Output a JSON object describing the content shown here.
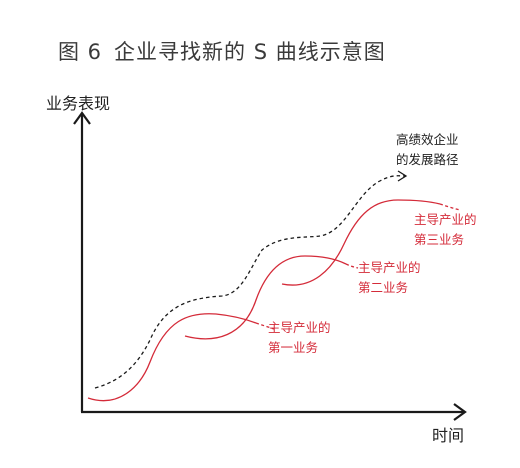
{
  "title": {
    "figure_no": "图 6",
    "text": "企业寻找新的 S 曲线示意图"
  },
  "axes": {
    "y_label": "业务表现",
    "x_label": "时间"
  },
  "path_label": {
    "line1": "高绩效企业",
    "line2": "的发展路径"
  },
  "businesses": [
    {
      "line1": "主导产业的",
      "line2": "第一业务"
    },
    {
      "line1": "主导产业的",
      "line2": "第二业务"
    },
    {
      "line1": "主导产业的",
      "line2": "第三业务"
    }
  ],
  "colors": {
    "curve": "#d42b39",
    "axis": "#1a1a1a",
    "path": "#1a1a1a"
  }
}
